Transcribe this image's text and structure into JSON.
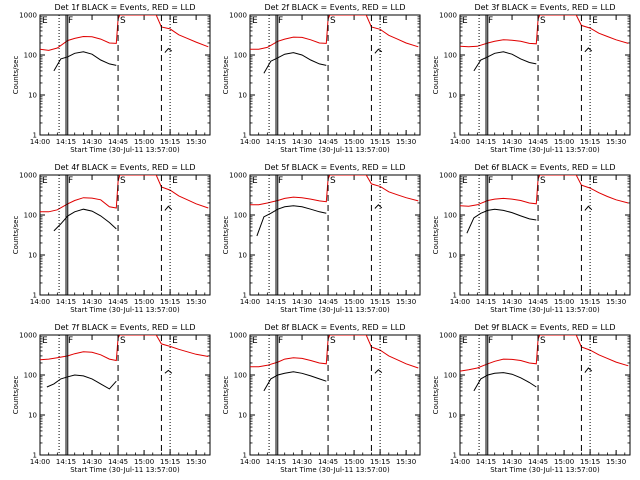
{
  "figure": {
    "xlabel": "Start Time (30-Jul-11 13:57:00)",
    "ylabel": "Counts/sec"
  },
  "chart_data": {
    "type": "line",
    "x_axis": {
      "kind": "time",
      "range": [
        "14:00",
        "15:38"
      ],
      "ticks": [
        "14:00",
        "14:15",
        "14:30",
        "14:45",
        "15:00",
        "15:15",
        "15:30"
      ]
    },
    "y_axis": {
      "scale": "log",
      "range": [
        1,
        1000
      ],
      "ticks": [
        1,
        10,
        100,
        1000
      ],
      "tick_labels": [
        "1",
        "10",
        "100",
        "1000"
      ]
    },
    "series_colors": {
      "events": "#000000",
      "lld": "#e00000"
    },
    "markers": [
      {
        "letter": "E",
        "time": "14:00",
        "style": "none"
      },
      {
        "letter": "",
        "time": "14:11",
        "style": "dotted"
      },
      {
        "letter": "F",
        "time": "14:15",
        "style": "solid"
      },
      {
        "letter": "",
        "time": "14:16",
        "style": "solid"
      },
      {
        "letter": "S",
        "time": "14:45",
        "style": "dashed"
      },
      {
        "letter": "",
        "time": "15:10",
        "style": "dashed"
      },
      {
        "letter": "E",
        "time": "15:15",
        "style": "dotted"
      }
    ],
    "panels": [
      {
        "title": "Det 1f BLACK = Events, RED = LLD",
        "series": [
          {
            "color": "black",
            "x": [
              "14:08",
              "14:12",
              "14:16",
              "14:20",
              "14:25",
              "14:30",
              "14:35",
              "14:40",
              "14:44",
              "14:45",
              "15:12",
              "15:14",
              "15:16"
            ],
            "y": [
              40,
              80,
              90,
              110,
              120,
              105,
              75,
              60,
              55,
              null,
              115,
              145,
              125
            ]
          },
          {
            "color": "red",
            "x": [
              "14:00",
              "14:05",
              "14:10",
              "14:16",
              "14:20",
              "14:25",
              "14:30",
              "14:35",
              "14:40",
              "14:44",
              "14:45",
              "14:46",
              "15:07",
              "15:10",
              "15:15",
              "15:20",
              "15:25",
              "15:30",
              "15:37"
            ],
            "y": [
              140,
              130,
              150,
              230,
              260,
              290,
              285,
              250,
              200,
              195,
              800,
              1000,
              1000,
              500,
              450,
              320,
              260,
              210,
              160
            ]
          }
        ]
      },
      {
        "title": "Det 2f BLACK = Events, RED = LLD",
        "series": [
          {
            "color": "black",
            "x": [
              "14:08",
              "14:12",
              "14:16",
              "14:20",
              "14:25",
              "14:30",
              "14:35",
              "14:40",
              "14:44",
              "14:45",
              "15:12",
              "15:14",
              "15:16"
            ],
            "y": [
              35,
              70,
              85,
              105,
              115,
              100,
              75,
              60,
              55,
              null,
              110,
              140,
              120
            ]
          },
          {
            "color": "red",
            "x": [
              "14:00",
              "14:05",
              "14:10",
              "14:16",
              "14:20",
              "14:25",
              "14:30",
              "14:35",
              "14:40",
              "14:44",
              "14:45",
              "14:46",
              "15:07",
              "15:10",
              "15:15",
              "15:20",
              "15:25",
              "15:30",
              "15:37"
            ],
            "y": [
              140,
              140,
              155,
              220,
              250,
              280,
              275,
              240,
              200,
              195,
              800,
              1000,
              1000,
              500,
              440,
              310,
              250,
              200,
              160
            ]
          }
        ]
      },
      {
        "title": "Det 3f BLACK = Events, RED = LLD",
        "series": [
          {
            "color": "black",
            "x": [
              "14:08",
              "14:12",
              "14:16",
              "14:20",
              "14:25",
              "14:30",
              "14:35",
              "14:40",
              "14:44",
              "14:45",
              "15:12",
              "15:14",
              "15:16"
            ],
            "y": [
              40,
              75,
              90,
              110,
              120,
              105,
              80,
              65,
              60,
              null,
              120,
              150,
              125
            ]
          },
          {
            "color": "red",
            "x": [
              "14:00",
              "14:05",
              "14:10",
              "14:16",
              "14:20",
              "14:25",
              "14:30",
              "14:35",
              "14:40",
              "14:44",
              "14:45",
              "14:46",
              "15:07",
              "15:10",
              "15:15",
              "15:20",
              "15:25",
              "15:30",
              "15:37"
            ],
            "y": [
              165,
              160,
              165,
              200,
              220,
              240,
              235,
              220,
              195,
              190,
              800,
              1000,
              1000,
              550,
              470,
              350,
              290,
              240,
              195
            ]
          }
        ]
      },
      {
        "title": "Det 4f BLACK = Events, RED = LLD",
        "series": [
          {
            "color": "black",
            "x": [
              "14:08",
              "14:12",
              "14:16",
              "14:20",
              "14:25",
              "14:30",
              "14:35",
              "14:40",
              "14:44",
              "14:45",
              "15:12",
              "15:14",
              "15:16"
            ],
            "y": [
              40,
              60,
              95,
              120,
              140,
              125,
              95,
              65,
              45,
              null,
              130,
              165,
              135
            ]
          },
          {
            "color": "red",
            "x": [
              "14:00",
              "14:05",
              "14:10",
              "14:16",
              "14:20",
              "14:25",
              "14:30",
              "14:35",
              "14:40",
              "14:44",
              "14:45",
              "14:46",
              "15:07",
              "15:10",
              "15:15",
              "15:20",
              "15:25",
              "15:30",
              "15:37"
            ],
            "y": [
              120,
              120,
              135,
              190,
              230,
              270,
              265,
              240,
              160,
              150,
              700,
              1000,
              1000,
              500,
              420,
              300,
              240,
              190,
              150
            ]
          }
        ]
      },
      {
        "title": "Det 5f BLACK = Events, RED = LLD",
        "series": [
          {
            "color": "black",
            "x": [
              "14:04",
              "14:08",
              "14:12",
              "14:16",
              "14:20",
              "14:25",
              "14:30",
              "14:35",
              "14:40",
              "14:44",
              "14:45",
              "15:12",
              "15:14",
              "15:16"
            ],
            "y": [
              30,
              90,
              110,
              140,
              160,
              170,
              160,
              140,
              120,
              110,
              null,
              145,
              180,
              150
            ]
          },
          {
            "color": "red",
            "x": [
              "14:00",
              "14:05",
              "14:10",
              "14:16",
              "14:20",
              "14:25",
              "14:30",
              "14:35",
              "14:40",
              "14:44",
              "14:45",
              "14:46",
              "15:07",
              "15:10",
              "15:15",
              "15:20",
              "15:25",
              "15:30",
              "15:37"
            ],
            "y": [
              180,
              180,
              200,
              230,
              260,
              280,
              270,
              250,
              225,
              215,
              800,
              1000,
              1000,
              600,
              520,
              380,
              320,
              270,
              225
            ]
          }
        ]
      },
      {
        "title": "Det 6f BLACK = Events, RED = LLD",
        "series": [
          {
            "color": "black",
            "x": [
              "14:04",
              "14:08",
              "14:12",
              "14:16",
              "14:20",
              "14:25",
              "14:30",
              "14:35",
              "14:40",
              "14:44",
              "14:45",
              "15:12",
              "15:14",
              "15:16"
            ],
            "y": [
              35,
              85,
              110,
              130,
              140,
              130,
              115,
              95,
              80,
              75,
              null,
              130,
              165,
              135
            ]
          },
          {
            "color": "red",
            "x": [
              "14:00",
              "14:05",
              "14:10",
              "14:16",
              "14:20",
              "14:25",
              "14:30",
              "14:35",
              "14:40",
              "14:44",
              "14:45",
              "14:46",
              "15:07",
              "15:10",
              "15:15",
              "15:20",
              "15:25",
              "15:30",
              "15:37"
            ],
            "y": [
              170,
              165,
              180,
              230,
              250,
              260,
              250,
              230,
              200,
              190,
              800,
              1000,
              1000,
              560,
              470,
              360,
              290,
              240,
              200
            ]
          }
        ]
      },
      {
        "title": "Det 7f BLACK = Events, RED = LLD",
        "series": [
          {
            "color": "black",
            "x": [
              "14:04",
              "14:08",
              "14:12",
              "14:16",
              "14:20",
              "14:25",
              "14:30",
              "14:35",
              "14:40",
              "14:44",
              "14:45",
              "15:12",
              "15:14",
              "15:16"
            ],
            "y": [
              50,
              60,
              80,
              90,
              100,
              95,
              80,
              60,
              45,
              70,
              null,
              110,
              130,
              110
            ]
          },
          {
            "color": "red",
            "x": [
              "14:00",
              "14:05",
              "14:10",
              "14:16",
              "14:20",
              "14:25",
              "14:30",
              "14:35",
              "14:40",
              "14:44",
              "14:45",
              "14:46",
              "15:07",
              "15:10",
              "15:15",
              "15:20",
              "15:25",
              "15:30",
              "15:37"
            ],
            "y": [
              240,
              250,
              270,
              300,
              340,
              380,
              370,
              320,
              250,
              230,
              850,
              1000,
              1000,
              600,
              520,
              440,
              380,
              330,
              290
            ]
          }
        ]
      },
      {
        "title": "Det 8f BLACK = Events, RED = LLD",
        "series": [
          {
            "color": "black",
            "x": [
              "14:08",
              "14:12",
              "14:16",
              "14:20",
              "14:25",
              "14:30",
              "14:35",
              "14:40",
              "14:44",
              "14:45",
              "15:12",
              "15:14",
              "15:16"
            ],
            "y": [
              40,
              80,
              100,
              110,
              120,
              110,
              95,
              80,
              70,
              null,
              110,
              135,
              115
            ]
          },
          {
            "color": "red",
            "x": [
              "14:00",
              "14:05",
              "14:10",
              "14:16",
              "14:20",
              "14:25",
              "14:30",
              "14:35",
              "14:40",
              "14:44",
              "14:45",
              "14:46",
              "15:07",
              "15:10",
              "15:15",
              "15:20",
              "15:25",
              "15:30",
              "15:37"
            ],
            "y": [
              160,
              160,
              175,
              210,
              250,
              270,
              260,
              230,
              200,
              190,
              800,
              1000,
              1000,
              500,
              420,
              300,
              240,
              190,
              150
            ]
          }
        ]
      },
      {
        "title": "Det 9f BLACK = Events, RED = LLD",
        "series": [
          {
            "color": "black",
            "x": [
              "14:08",
              "14:12",
              "14:16",
              "14:20",
              "14:25",
              "14:30",
              "14:35",
              "14:40",
              "14:44",
              "14:45",
              "15:12",
              "15:14",
              "15:16"
            ],
            "y": [
              40,
              80,
              100,
              110,
              115,
              105,
              85,
              65,
              50,
              null,
              115,
              150,
              125
            ]
          },
          {
            "color": "red",
            "x": [
              "14:00",
              "14:05",
              "14:10",
              "14:16",
              "14:20",
              "14:25",
              "14:30",
              "14:35",
              "14:40",
              "14:44",
              "14:45",
              "14:46",
              "15:07",
              "15:10",
              "15:15",
              "15:20",
              "15:25",
              "15:30",
              "15:37"
            ],
            "y": [
              125,
              135,
              150,
              190,
              220,
              250,
              245,
              230,
              200,
              190,
              800,
              1000,
              1000,
              500,
              420,
              320,
              260,
              210,
              170
            ]
          }
        ]
      }
    ]
  }
}
